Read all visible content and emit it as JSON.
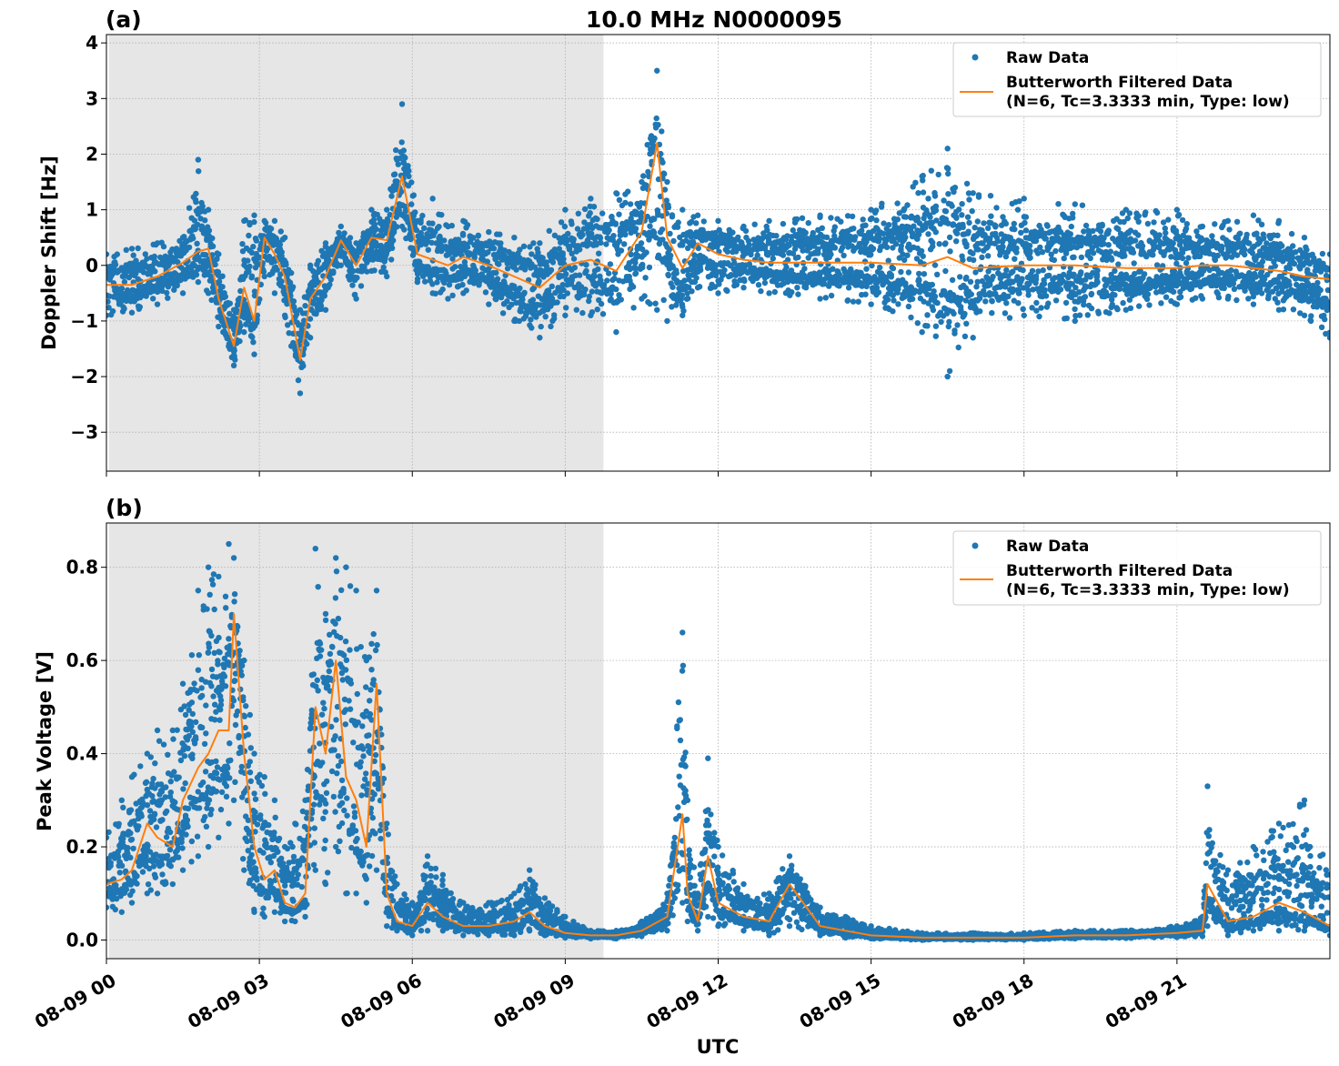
{
  "figure": {
    "title": "10.0 MHz N0000095",
    "xlabel": "UTC",
    "x_ticks": [
      "08-09 00",
      "08-09 03",
      "08-09 06",
      "08-09 09",
      "08-09 12",
      "08-09 15",
      "08-09 18",
      "08-09 21"
    ],
    "colors": {
      "raw": "#1f77b4",
      "filtered": "#ff7f0e",
      "night_shade": "#e6e6e6",
      "grid": "#b0b0b0"
    }
  },
  "panel_a": {
    "tag": "(a)",
    "ylabel": "Doppler Shift [Hz]",
    "y_ticks": [
      "4",
      "3",
      "2",
      "1",
      "0",
      "−1",
      "−2",
      "−3"
    ],
    "legend": {
      "raw": "Raw Data",
      "filtered_line1": "Butterworth Filtered Data",
      "filtered_line2": "(N=6, Tc=3.3333 min, Type: low)",
      "placement": "upper right"
    }
  },
  "panel_b": {
    "tag": "(b)",
    "ylabel": "Peak Voltage [V]",
    "y_ticks": [
      "0.8",
      "0.6",
      "0.4",
      "0.2",
      "0.0"
    ],
    "legend": {
      "raw": "Raw Data",
      "filtered_line1": "Butterworth Filtered Data",
      "filtered_line2": "(N=6, Tc=3.3333 min, Type: low)",
      "placement": "upper right"
    }
  },
  "chart_data": [
    {
      "type": "scatter",
      "title": "10.0 MHz N0000095",
      "xlabel": "",
      "ylabel": "Doppler Shift [Hz]",
      "x_unit": "hours UTC on 08-09",
      "xlim": [
        0,
        24
      ],
      "ylim": [
        -3.7,
        4.15
      ],
      "grid": true,
      "shaded_interval": [
        0.05,
        9.75
      ],
      "series": [
        {
          "name": "Butterworth Filtered Data",
          "type": "line",
          "x": [
            0,
            0.5,
            1,
            1.5,
            1.8,
            2,
            2.2,
            2.5,
            2.7,
            2.9,
            3.1,
            3.3,
            3.5,
            3.8,
            4,
            4.3,
            4.6,
            4.9,
            5.2,
            5.5,
            5.8,
            6.1,
            6.4,
            6.7,
            7,
            7.5,
            8,
            8.5,
            9,
            9.5,
            10,
            10.5,
            10.8,
            11,
            11.3,
            11.6,
            12,
            12.5,
            13,
            14,
            15,
            16,
            16.5,
            17,
            18,
            19,
            20,
            21,
            21.5,
            22,
            22.5,
            23,
            23.5,
            24
          ],
          "y": [
            -0.35,
            -0.35,
            -0.2,
            0.05,
            0.25,
            0.3,
            -0.6,
            -1.45,
            -0.4,
            -1,
            0.5,
            0.2,
            -0.2,
            -1.7,
            -0.6,
            -0.2,
            0.45,
            0.0,
            0.5,
            0.45,
            1.6,
            0.2,
            0.1,
            0.0,
            0.15,
            0.0,
            -0.2,
            -0.4,
            0.0,
            0.1,
            -0.1,
            0.6,
            2.2,
            0.5,
            -0.05,
            0.4,
            0.2,
            0.1,
            0.05,
            0.05,
            0.05,
            0.0,
            0.15,
            -0.05,
            0.0,
            0.0,
            -0.05,
            -0.05,
            0.0,
            0.0,
            -0.05,
            -0.1,
            -0.2,
            -0.25
          ]
        },
        {
          "name": "Raw Data",
          "type": "scatter",
          "x": [
            0,
            0.5,
            1,
            1.5,
            1.8,
            2,
            2.2,
            2.5,
            2.7,
            2.9,
            3.1,
            3.3,
            3.5,
            3.8,
            4,
            4.3,
            4.6,
            4.9,
            5.2,
            5.5,
            5.8,
            6.1,
            6.4,
            6.7,
            7,
            7.5,
            8,
            8.5,
            9,
            9.5,
            10,
            10.5,
            10.8,
            11,
            11.3,
            11.6,
            12,
            12.5,
            13,
            14,
            15,
            16,
            16.5,
            17,
            18,
            19,
            20,
            21,
            21.5,
            22,
            22.5,
            23,
            23.5,
            24
          ],
          "y_min": [
            -0.9,
            -0.85,
            -0.7,
            -0.5,
            -0.3,
            -0.5,
            -1.1,
            -1.8,
            -1.2,
            -1.6,
            -0.2,
            -0.5,
            -0.9,
            -2.3,
            -1.3,
            -0.8,
            0.0,
            -0.6,
            -0.1,
            -0.2,
            0.7,
            -0.3,
            -0.5,
            -0.6,
            -0.5,
            -0.7,
            -1.0,
            -1.3,
            -0.9,
            -0.9,
            -1.2,
            -0.6,
            -0.8,
            -1.0,
            -0.9,
            -0.4,
            -0.5,
            -0.4,
            -0.5,
            -0.6,
            -0.7,
            -1.2,
            -2.0,
            -1.3,
            -0.9,
            -1.0,
            -0.8,
            -0.7,
            -0.6,
            -0.6,
            -0.7,
            -0.8,
            -0.9,
            -1.3
          ],
          "y_max": [
            0.2,
            0.3,
            0.4,
            0.5,
            1.9,
            1.0,
            0.2,
            -0.8,
            0.8,
            0.9,
            0.8,
            0.8,
            0.5,
            -0.8,
            0.0,
            0.4,
            0.7,
            0.4,
            1.0,
            1.0,
            2.9,
            0.8,
            1.2,
            0.7,
            0.8,
            0.6,
            0.5,
            0.4,
            1.0,
            1.2,
            1.3,
            1.5,
            3.5,
            1.5,
            1.0,
            0.9,
            0.8,
            0.7,
            0.8,
            0.9,
            1.0,
            1.6,
            2.1,
            1.3,
            1.2,
            1.1,
            1.0,
            1.0,
            0.7,
            0.8,
            0.9,
            0.8,
            0.5,
            0.2
          ]
        }
      ]
    },
    {
      "type": "scatter",
      "title": "",
      "xlabel": "UTC",
      "ylabel": "Peak Voltage [V]",
      "x_unit": "hours UTC on 08-09",
      "xlim": [
        0,
        24
      ],
      "ylim": [
        -0.04,
        0.895
      ],
      "grid": true,
      "shaded_interval": [
        0.05,
        9.75
      ],
      "series": [
        {
          "name": "Butterworth Filtered Data",
          "type": "line",
          "x": [
            0,
            0.3,
            0.5,
            0.8,
            1,
            1.3,
            1.5,
            1.8,
            2,
            2.2,
            2.4,
            2.5,
            2.7,
            2.9,
            3.1,
            3.3,
            3.5,
            3.7,
            3.9,
            4.1,
            4.3,
            4.5,
            4.7,
            4.9,
            5.1,
            5.3,
            5.5,
            5.7,
            6,
            6.3,
            6.6,
            7,
            7.5,
            8,
            8.3,
            8.6,
            9,
            9.5,
            10,
            10.5,
            11,
            11.3,
            11.4,
            11.6,
            11.8,
            12,
            12.5,
            13,
            13.4,
            14,
            14.5,
            15,
            16,
            17,
            18,
            19,
            20,
            21,
            21.5,
            21.6,
            22,
            22.5,
            23,
            23.5,
            24
          ],
          "y": [
            0.12,
            0.13,
            0.15,
            0.25,
            0.22,
            0.2,
            0.3,
            0.37,
            0.4,
            0.45,
            0.45,
            0.7,
            0.4,
            0.2,
            0.13,
            0.15,
            0.08,
            0.07,
            0.1,
            0.5,
            0.4,
            0.6,
            0.35,
            0.3,
            0.2,
            0.55,
            0.1,
            0.04,
            0.03,
            0.08,
            0.05,
            0.03,
            0.03,
            0.04,
            0.06,
            0.03,
            0.015,
            0.01,
            0.01,
            0.02,
            0.05,
            0.27,
            0.1,
            0.04,
            0.18,
            0.08,
            0.05,
            0.04,
            0.12,
            0.03,
            0.02,
            0.01,
            0.005,
            0.005,
            0.005,
            0.01,
            0.01,
            0.015,
            0.02,
            0.12,
            0.04,
            0.05,
            0.08,
            0.06,
            0.03
          ]
        },
        {
          "name": "Raw Data",
          "type": "scatter",
          "x": [
            0,
            0.3,
            0.5,
            0.8,
            1,
            1.3,
            1.5,
            1.8,
            2,
            2.2,
            2.4,
            2.5,
            2.7,
            2.9,
            3.1,
            3.3,
            3.5,
            3.7,
            3.9,
            4.1,
            4.3,
            4.5,
            4.7,
            4.9,
            5.1,
            5.3,
            5.5,
            5.7,
            6,
            6.3,
            6.6,
            7,
            7.5,
            8,
            8.3,
            8.6,
            9,
            9.5,
            10,
            10.5,
            11,
            11.3,
            11.4,
            11.6,
            11.8,
            12,
            12.5,
            13,
            13.4,
            14,
            14.5,
            15,
            16,
            17,
            18,
            19,
            20,
            21,
            21.5,
            21.6,
            22,
            22.5,
            23,
            23.5,
            24
          ],
          "y_min": [
            0.07,
            0.06,
            0.08,
            0.1,
            0.1,
            0.12,
            0.15,
            0.18,
            0.2,
            0.22,
            0.25,
            0.3,
            0.15,
            0.06,
            0.05,
            0.06,
            0.04,
            0.04,
            0.05,
            0.15,
            0.12,
            0.2,
            0.1,
            0.1,
            0.08,
            0.15,
            0.03,
            0.02,
            0.01,
            0.02,
            0.02,
            0.01,
            0.01,
            0.01,
            0.02,
            0.01,
            0.005,
            0.003,
            0.003,
            0.008,
            0.02,
            0.08,
            0.04,
            0.02,
            0.05,
            0.03,
            0.02,
            0.01,
            0.03,
            0.01,
            0.005,
            0.003,
            0.0,
            0.0,
            0.0,
            0.003,
            0.004,
            0.006,
            0.008,
            0.03,
            0.01,
            0.02,
            0.02,
            0.02,
            0.01
          ],
          "y_max": [
            0.22,
            0.3,
            0.35,
            0.4,
            0.45,
            0.45,
            0.55,
            0.75,
            0.8,
            0.78,
            0.85,
            0.82,
            0.6,
            0.4,
            0.35,
            0.3,
            0.2,
            0.25,
            0.3,
            0.84,
            0.7,
            0.82,
            0.8,
            0.75,
            0.6,
            0.75,
            0.25,
            0.12,
            0.08,
            0.18,
            0.14,
            0.08,
            0.08,
            0.1,
            0.15,
            0.09,
            0.05,
            0.02,
            0.02,
            0.04,
            0.1,
            0.66,
            0.3,
            0.1,
            0.39,
            0.2,
            0.12,
            0.1,
            0.18,
            0.07,
            0.05,
            0.03,
            0.015,
            0.015,
            0.015,
            0.02,
            0.02,
            0.03,
            0.05,
            0.33,
            0.15,
            0.2,
            0.25,
            0.3,
            0.14
          ]
        }
      ]
    }
  ]
}
